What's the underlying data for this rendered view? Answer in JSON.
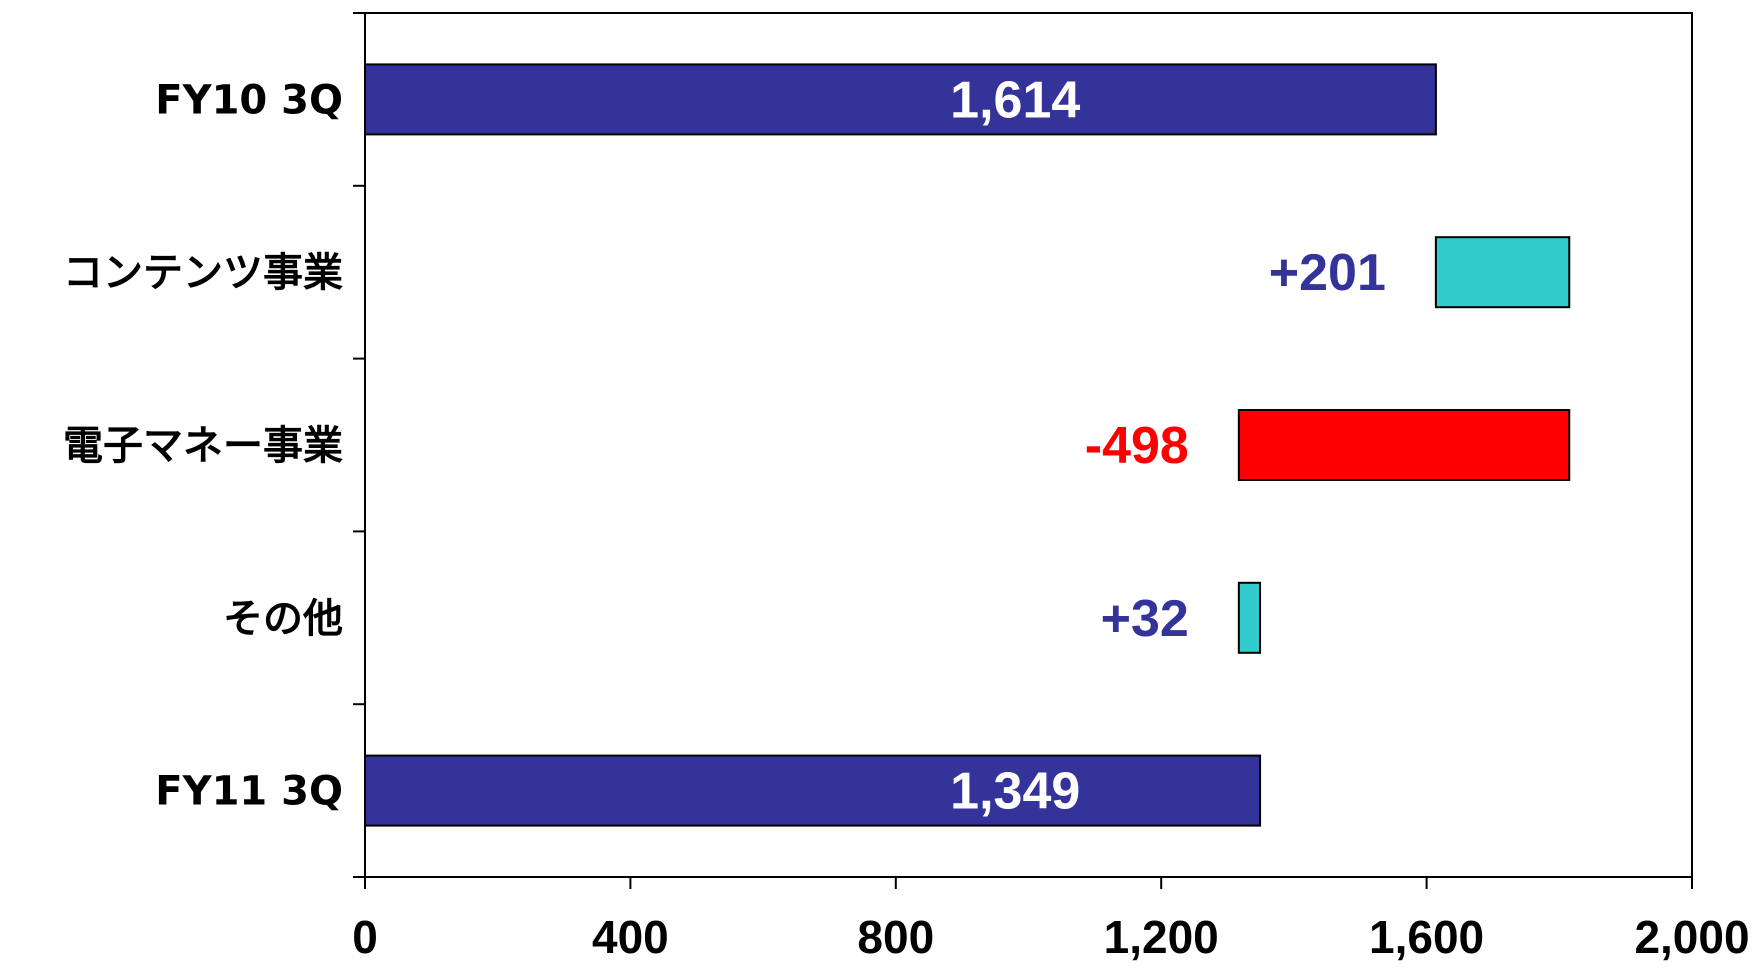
{
  "chart_data": {
    "type": "waterfall",
    "orientation": "horizontal",
    "categories": [
      "FY10 3Q",
      "コンテンツ事業",
      "電子マネー事業",
      "その他",
      "FY11 3Q"
    ],
    "bars": [
      {
        "label": "FY10 3Q",
        "kind": "total",
        "start": 0,
        "end": 1614,
        "value_label": "1,614",
        "color": "#333399",
        "label_color": "#ffffff"
      },
      {
        "label": "コンテンツ事業",
        "kind": "increase",
        "start": 1614,
        "end": 1815,
        "value_label": "+201",
        "color": "#33CCCC",
        "label_color": "#333399"
      },
      {
        "label": "電子マネー事業",
        "kind": "decrease",
        "start": 1317,
        "end": 1815,
        "value_label": "-498",
        "color": "#FF0000",
        "label_color": "#FF0000"
      },
      {
        "label": "その他",
        "kind": "increase",
        "start": 1317,
        "end": 1349,
        "value_label": "+32",
        "color": "#33CCCC",
        "label_color": "#333399"
      },
      {
        "label": "FY11 3Q",
        "kind": "total",
        "start": 0,
        "end": 1349,
        "value_label": "1,349",
        "color": "#333399",
        "label_color": "#ffffff"
      }
    ],
    "xlim": [
      0,
      2000
    ],
    "xticks": [
      0,
      400,
      800,
      1200,
      1600,
      2000
    ],
    "xtick_labels": [
      "0",
      "400",
      "800",
      "1,200",
      "1,600",
      "2,000"
    ],
    "grid": false,
    "legend": "none"
  }
}
